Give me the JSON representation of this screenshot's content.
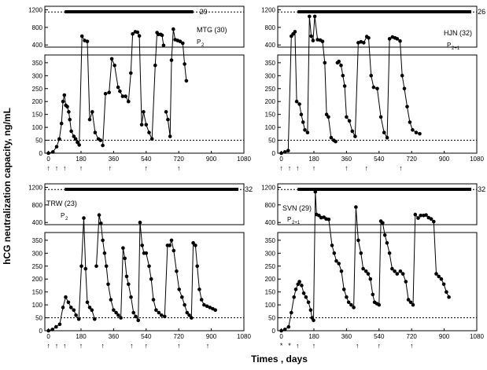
{
  "figure": {
    "ylabel": "hCG neutralization capacity, ng/mL",
    "xlabel": "Times , days"
  },
  "chart_data": [
    {
      "type": "line",
      "panel": "top-left",
      "subject": "MTG (30)",
      "phase": "P",
      "phase_sub": "2",
      "bar_label": "29",
      "bar_range": [
        90,
        800
      ],
      "dotted_high": 1150,
      "dotted_low": 50,
      "xlim": [
        -20,
        1080
      ],
      "xticks": [
        0,
        180,
        360,
        540,
        720,
        900,
        1080
      ],
      "yticks_upper": [
        400,
        800,
        1200
      ],
      "yticks_lower": [
        0,
        50,
        100,
        150,
        200,
        250,
        300,
        350
      ],
      "arrows": [
        0,
        45,
        90,
        180,
        340,
        540,
        720
      ],
      "arrow_marks": [
        "↑",
        "↑",
        "↑",
        "↑",
        "↑",
        "↑",
        "↑"
      ],
      "segments": [
        [
          [
            0,
            0
          ],
          [
            25,
            5
          ],
          [
            45,
            25
          ],
          [
            60,
            55
          ],
          [
            72,
            115
          ],
          [
            80,
            200
          ],
          [
            88,
            225
          ],
          [
            96,
            185
          ],
          [
            104,
            180
          ],
          [
            112,
            160
          ],
          [
            118,
            130
          ],
          [
            126,
            85
          ],
          [
            140,
            65
          ],
          [
            150,
            55
          ],
          [
            160,
            42
          ],
          [
            170,
            32
          ],
          [
            185,
            600
          ],
          [
            200,
            500
          ],
          [
            215,
            480
          ],
          [
            228,
            130
          ],
          [
            242,
            160
          ],
          [
            258,
            80
          ],
          [
            276,
            55
          ],
          [
            288,
            50
          ]
        ],
        [
          [
            300,
            30
          ],
          [
            315,
            230
          ],
          [
            335,
            235
          ],
          [
            350,
            365
          ],
          [
            365,
            340
          ],
          [
            385,
            255
          ],
          [
            395,
            240
          ],
          [
            410,
            220
          ],
          [
            426,
            220
          ],
          [
            442,
            200
          ],
          [
            455,
            310
          ],
          [
            465,
            650
          ],
          [
            480,
            700
          ],
          [
            492,
            690
          ],
          [
            502,
            605
          ],
          [
            515,
            110
          ],
          [
            525,
            160
          ],
          [
            540,
            110
          ],
          [
            556,
            80
          ],
          [
            572,
            55
          ],
          [
            590,
            340
          ],
          [
            600,
            680
          ],
          [
            608,
            640
          ],
          [
            620,
            640
          ],
          [
            628,
            620
          ],
          [
            636,
            390
          ]
        ],
        [
          [
            650,
            160
          ],
          [
            660,
            130
          ],
          [
            672,
            65
          ],
          [
            680,
            360
          ],
          [
            690,
            760
          ],
          [
            700,
            520
          ],
          [
            714,
            500
          ],
          [
            728,
            480
          ],
          [
            742,
            440
          ],
          [
            752,
            345
          ],
          [
            762,
            280
          ]
        ]
      ]
    },
    {
      "type": "line",
      "panel": "top-right",
      "subject": "HJN (32)",
      "phase": "P",
      "phase_sub": "2+1",
      "bar_label": "26",
      "bar_range": [
        90,
        1050
      ],
      "dotted_high": 1150,
      "dotted_low": 50,
      "xlim": [
        -20,
        1080
      ],
      "xticks": [
        0,
        180,
        360,
        540,
        720,
        900,
        1080
      ],
      "yticks_upper": [
        400,
        800,
        1200
      ],
      "yticks_lower": [
        0,
        50,
        100,
        150,
        200,
        250,
        300,
        350
      ],
      "arrows": [
        0,
        45,
        90,
        180,
        360,
        470,
        660
      ],
      "arrow_marks": [
        "↑",
        "↑",
        "↑",
        "↑",
        "↑",
        "↑",
        "↑"
      ],
      "segments": [
        [
          [
            0,
            0
          ],
          [
            20,
            5
          ],
          [
            38,
            10
          ],
          [
            55,
            600
          ],
          [
            65,
            650
          ],
          [
            75,
            700
          ],
          [
            85,
            200
          ],
          [
            100,
            190
          ],
          [
            110,
            150
          ],
          [
            120,
            120
          ],
          [
            130,
            90
          ],
          [
            145,
            80
          ],
          [
            155,
            1050
          ],
          [
            165,
            600
          ],
          [
            175,
            500
          ],
          [
            185,
            1050
          ],
          [
            200,
            520
          ],
          [
            215,
            510
          ],
          [
            228,
            480
          ],
          [
            240,
            350
          ],
          [
            250,
            150
          ],
          [
            260,
            140
          ],
          [
            275,
            60
          ],
          [
            290,
            50
          ],
          [
            300,
            45
          ]
        ],
        [
          [
            310,
            350
          ],
          [
            318,
            355
          ],
          [
            330,
            340
          ],
          [
            340,
            300
          ],
          [
            350,
            260
          ],
          [
            360,
            140
          ],
          [
            376,
            125
          ],
          [
            392,
            85
          ],
          [
            408,
            65
          ],
          [
            425,
            450
          ],
          [
            440,
            470
          ],
          [
            455,
            450
          ],
          [
            472,
            590
          ],
          [
            482,
            560
          ],
          [
            496,
            300
          ],
          [
            510,
            255
          ],
          [
            530,
            250
          ],
          [
            550,
            140
          ],
          [
            568,
            80
          ],
          [
            585,
            60
          ],
          [
            598,
            540
          ],
          [
            614,
            580
          ],
          [
            628,
            560
          ],
          [
            640,
            540
          ],
          [
            656,
            490
          ],
          [
            668,
            300
          ],
          [
            680,
            250
          ],
          [
            695,
            180
          ],
          [
            710,
            120
          ],
          [
            725,
            90
          ],
          [
            745,
            80
          ],
          [
            765,
            75
          ]
        ]
      ]
    },
    {
      "type": "line",
      "panel": "bottom-left",
      "subject": "TRW (23)",
      "phase": "P",
      "phase_sub": "2",
      "bar_label": "32",
      "bar_range": [
        90,
        1050
      ],
      "dotted_high": 1150,
      "dotted_low": 50,
      "xlim": [
        -20,
        1080
      ],
      "xticks": [
        0,
        180,
        360,
        540,
        720,
        900,
        1080
      ],
      "yticks_upper": [
        400,
        800,
        1200
      ],
      "yticks_lower": [
        0,
        50,
        100,
        150,
        200,
        250,
        300,
        350
      ],
      "arrows": [
        0,
        45,
        90,
        180,
        300,
        460,
        540,
        720,
        880
      ],
      "arrow_marks": [
        "↑",
        "↑",
        "↑",
        "↑",
        "↑",
        "↑",
        "↑",
        "↑",
        "↑"
      ],
      "segments": [
        [
          [
            0,
            0
          ],
          [
            22,
            5
          ],
          [
            42,
            15
          ],
          [
            62,
            25
          ],
          [
            80,
            90
          ],
          [
            95,
            130
          ],
          [
            110,
            110
          ],
          [
            125,
            90
          ],
          [
            140,
            80
          ],
          [
            152,
            60
          ],
          [
            168,
            45
          ],
          [
            182,
            250
          ],
          [
            195,
            500
          ],
          [
            205,
            240
          ],
          [
            215,
            110
          ],
          [
            228,
            90
          ],
          [
            240,
            80
          ],
          [
            255,
            45
          ]
        ],
        [
          [
            265,
            250
          ],
          [
            280,
            570
          ],
          [
            290,
            380
          ],
          [
            300,
            350
          ],
          [
            310,
            300
          ],
          [
            320,
            250
          ],
          [
            330,
            180
          ],
          [
            345,
            120
          ],
          [
            360,
            80
          ],
          [
            374,
            70
          ],
          [
            386,
            60
          ],
          [
            400,
            50
          ],
          [
            412,
            320
          ],
          [
            422,
            280
          ],
          [
            432,
            210
          ],
          [
            442,
            180
          ],
          [
            456,
            130
          ],
          [
            470,
            70
          ],
          [
            482,
            55
          ],
          [
            496,
            40
          ],
          [
            506,
            400
          ],
          [
            518,
            330
          ],
          [
            528,
            300
          ],
          [
            540,
            300
          ],
          [
            556,
            250
          ],
          [
            568,
            200
          ],
          [
            580,
            120
          ],
          [
            595,
            80
          ],
          [
            610,
            70
          ],
          [
            625,
            60
          ],
          [
            642,
            55
          ],
          [
            658,
            330
          ],
          [
            670,
            330
          ],
          [
            680,
            350
          ],
          [
            692,
            310
          ],
          [
            708,
            230
          ],
          [
            722,
            160
          ],
          [
            738,
            130
          ],
          [
            752,
            100
          ],
          [
            766,
            70
          ],
          [
            778,
            60
          ],
          [
            790,
            50
          ],
          [
            800,
            340
          ],
          [
            812,
            330
          ],
          [
            822,
            250
          ],
          [
            834,
            160
          ],
          [
            846,
            120
          ],
          [
            860,
            100
          ],
          [
            876,
            95
          ],
          [
            892,
            90
          ],
          [
            908,
            85
          ],
          [
            922,
            80
          ]
        ]
      ]
    },
    {
      "type": "line",
      "panel": "bottom-right",
      "subject": "SVN (29)",
      "phase": "P",
      "phase_sub": "2+1",
      "bar_label": "32",
      "bar_range": [
        90,
        1050
      ],
      "dotted_high": 1150,
      "dotted_low": 50,
      "xlim": [
        -20,
        1080
      ],
      "xticks": [
        0,
        180,
        360,
        540,
        720,
        900,
        1080
      ],
      "yticks_upper": [
        400,
        800,
        1200
      ],
      "yticks_lower": [
        0,
        50,
        100,
        150,
        200,
        250,
        300,
        350
      ],
      "arrows": [
        0,
        45,
        90,
        180,
        420,
        540,
        720
      ],
      "arrow_marks": [
        "*",
        "*",
        "↑",
        "↑",
        "↑",
        "↑",
        "↑"
      ],
      "segments": [
        [
          [
            0,
            0
          ],
          [
            20,
            5
          ],
          [
            40,
            15
          ],
          [
            55,
            70
          ],
          [
            70,
            130
          ],
          [
            80,
            160
          ],
          [
            92,
            180
          ],
          [
            100,
            190
          ],
          [
            112,
            175
          ],
          [
            124,
            145
          ],
          [
            136,
            130
          ],
          [
            150,
            110
          ],
          [
            162,
            80
          ],
          [
            170,
            50
          ],
          [
            178,
            40
          ],
          [
            188,
            1100
          ],
          [
            195,
            580
          ],
          [
            208,
            560
          ],
          [
            220,
            510
          ],
          [
            235,
            520
          ],
          [
            248,
            480
          ],
          [
            262,
            470
          ],
          [
            280,
            330
          ],
          [
            292,
            300
          ],
          [
            304,
            270
          ],
          [
            318,
            260
          ],
          [
            332,
            230
          ],
          [
            346,
            160
          ],
          [
            360,
            130
          ],
          [
            372,
            110
          ],
          [
            386,
            100
          ],
          [
            400,
            90
          ],
          [
            412,
            750
          ],
          [
            425,
            350
          ],
          [
            440,
            300
          ],
          [
            452,
            240
          ],
          [
            468,
            230
          ],
          [
            480,
            220
          ],
          [
            492,
            200
          ],
          [
            505,
            140
          ],
          [
            515,
            110
          ],
          [
            528,
            105
          ],
          [
            540,
            100
          ],
          [
            550,
            430
          ],
          [
            560,
            390
          ],
          [
            572,
            370
          ],
          [
            584,
            340
          ],
          [
            598,
            300
          ],
          [
            612,
            240
          ],
          [
            626,
            230
          ],
          [
            640,
            220
          ],
          [
            658,
            230
          ],
          [
            672,
            220
          ],
          [
            688,
            190
          ],
          [
            702,
            120
          ],
          [
            715,
            110
          ],
          [
            728,
            100
          ],
          [
            740,
            580
          ],
          [
            756,
            500
          ],
          [
            770,
            560
          ],
          [
            786,
            560
          ],
          [
            800,
            570
          ],
          [
            814,
            510
          ],
          [
            828,
            480
          ],
          [
            842,
            420
          ],
          [
            856,
            220
          ],
          [
            870,
            210
          ],
          [
            884,
            200
          ],
          [
            898,
            180
          ],
          [
            912,
            150
          ],
          [
            926,
            130
          ]
        ]
      ]
    }
  ]
}
